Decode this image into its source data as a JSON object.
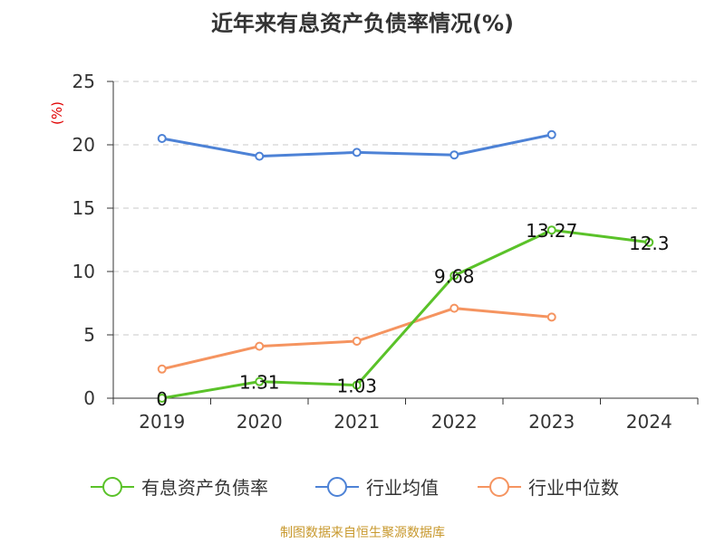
{
  "title": "近年来有息资产负债率情况(%)",
  "source": "制图数据来自恒生聚源数据库",
  "colors": {
    "series": [
      "#5ac229",
      "#4d82d6",
      "#f59460"
    ],
    "axis": "#333333",
    "grid": "#c8c8c8",
    "unit": "#e00000",
    "source": "#c8992e"
  },
  "chart_data": {
    "type": "line",
    "title": "近年来有息资产负债率情况(%)",
    "ylabel": "(%)",
    "xlabel": "",
    "categories": [
      "2019",
      "2020",
      "2021",
      "2022",
      "2023",
      "2024"
    ],
    "ylim": [
      0,
      25
    ],
    "yticks": [
      0,
      5,
      10,
      15,
      20,
      25
    ],
    "grid": "horizontal dashed",
    "legend": "bottom",
    "series": [
      {
        "name": "有息资产负债率",
        "values": [
          0,
          1.31,
          1.03,
          9.68,
          13.27,
          12.3
        ],
        "labels": [
          "0",
          "1.31",
          "1.03",
          "9.68",
          "13.27",
          "12.3"
        ]
      },
      {
        "name": "行业均值",
        "values": [
          20.5,
          19.1,
          19.4,
          19.2,
          20.8,
          null
        ]
      },
      {
        "name": "行业中位数",
        "values": [
          2.3,
          4.1,
          4.5,
          7.1,
          6.4,
          null
        ]
      }
    ]
  }
}
